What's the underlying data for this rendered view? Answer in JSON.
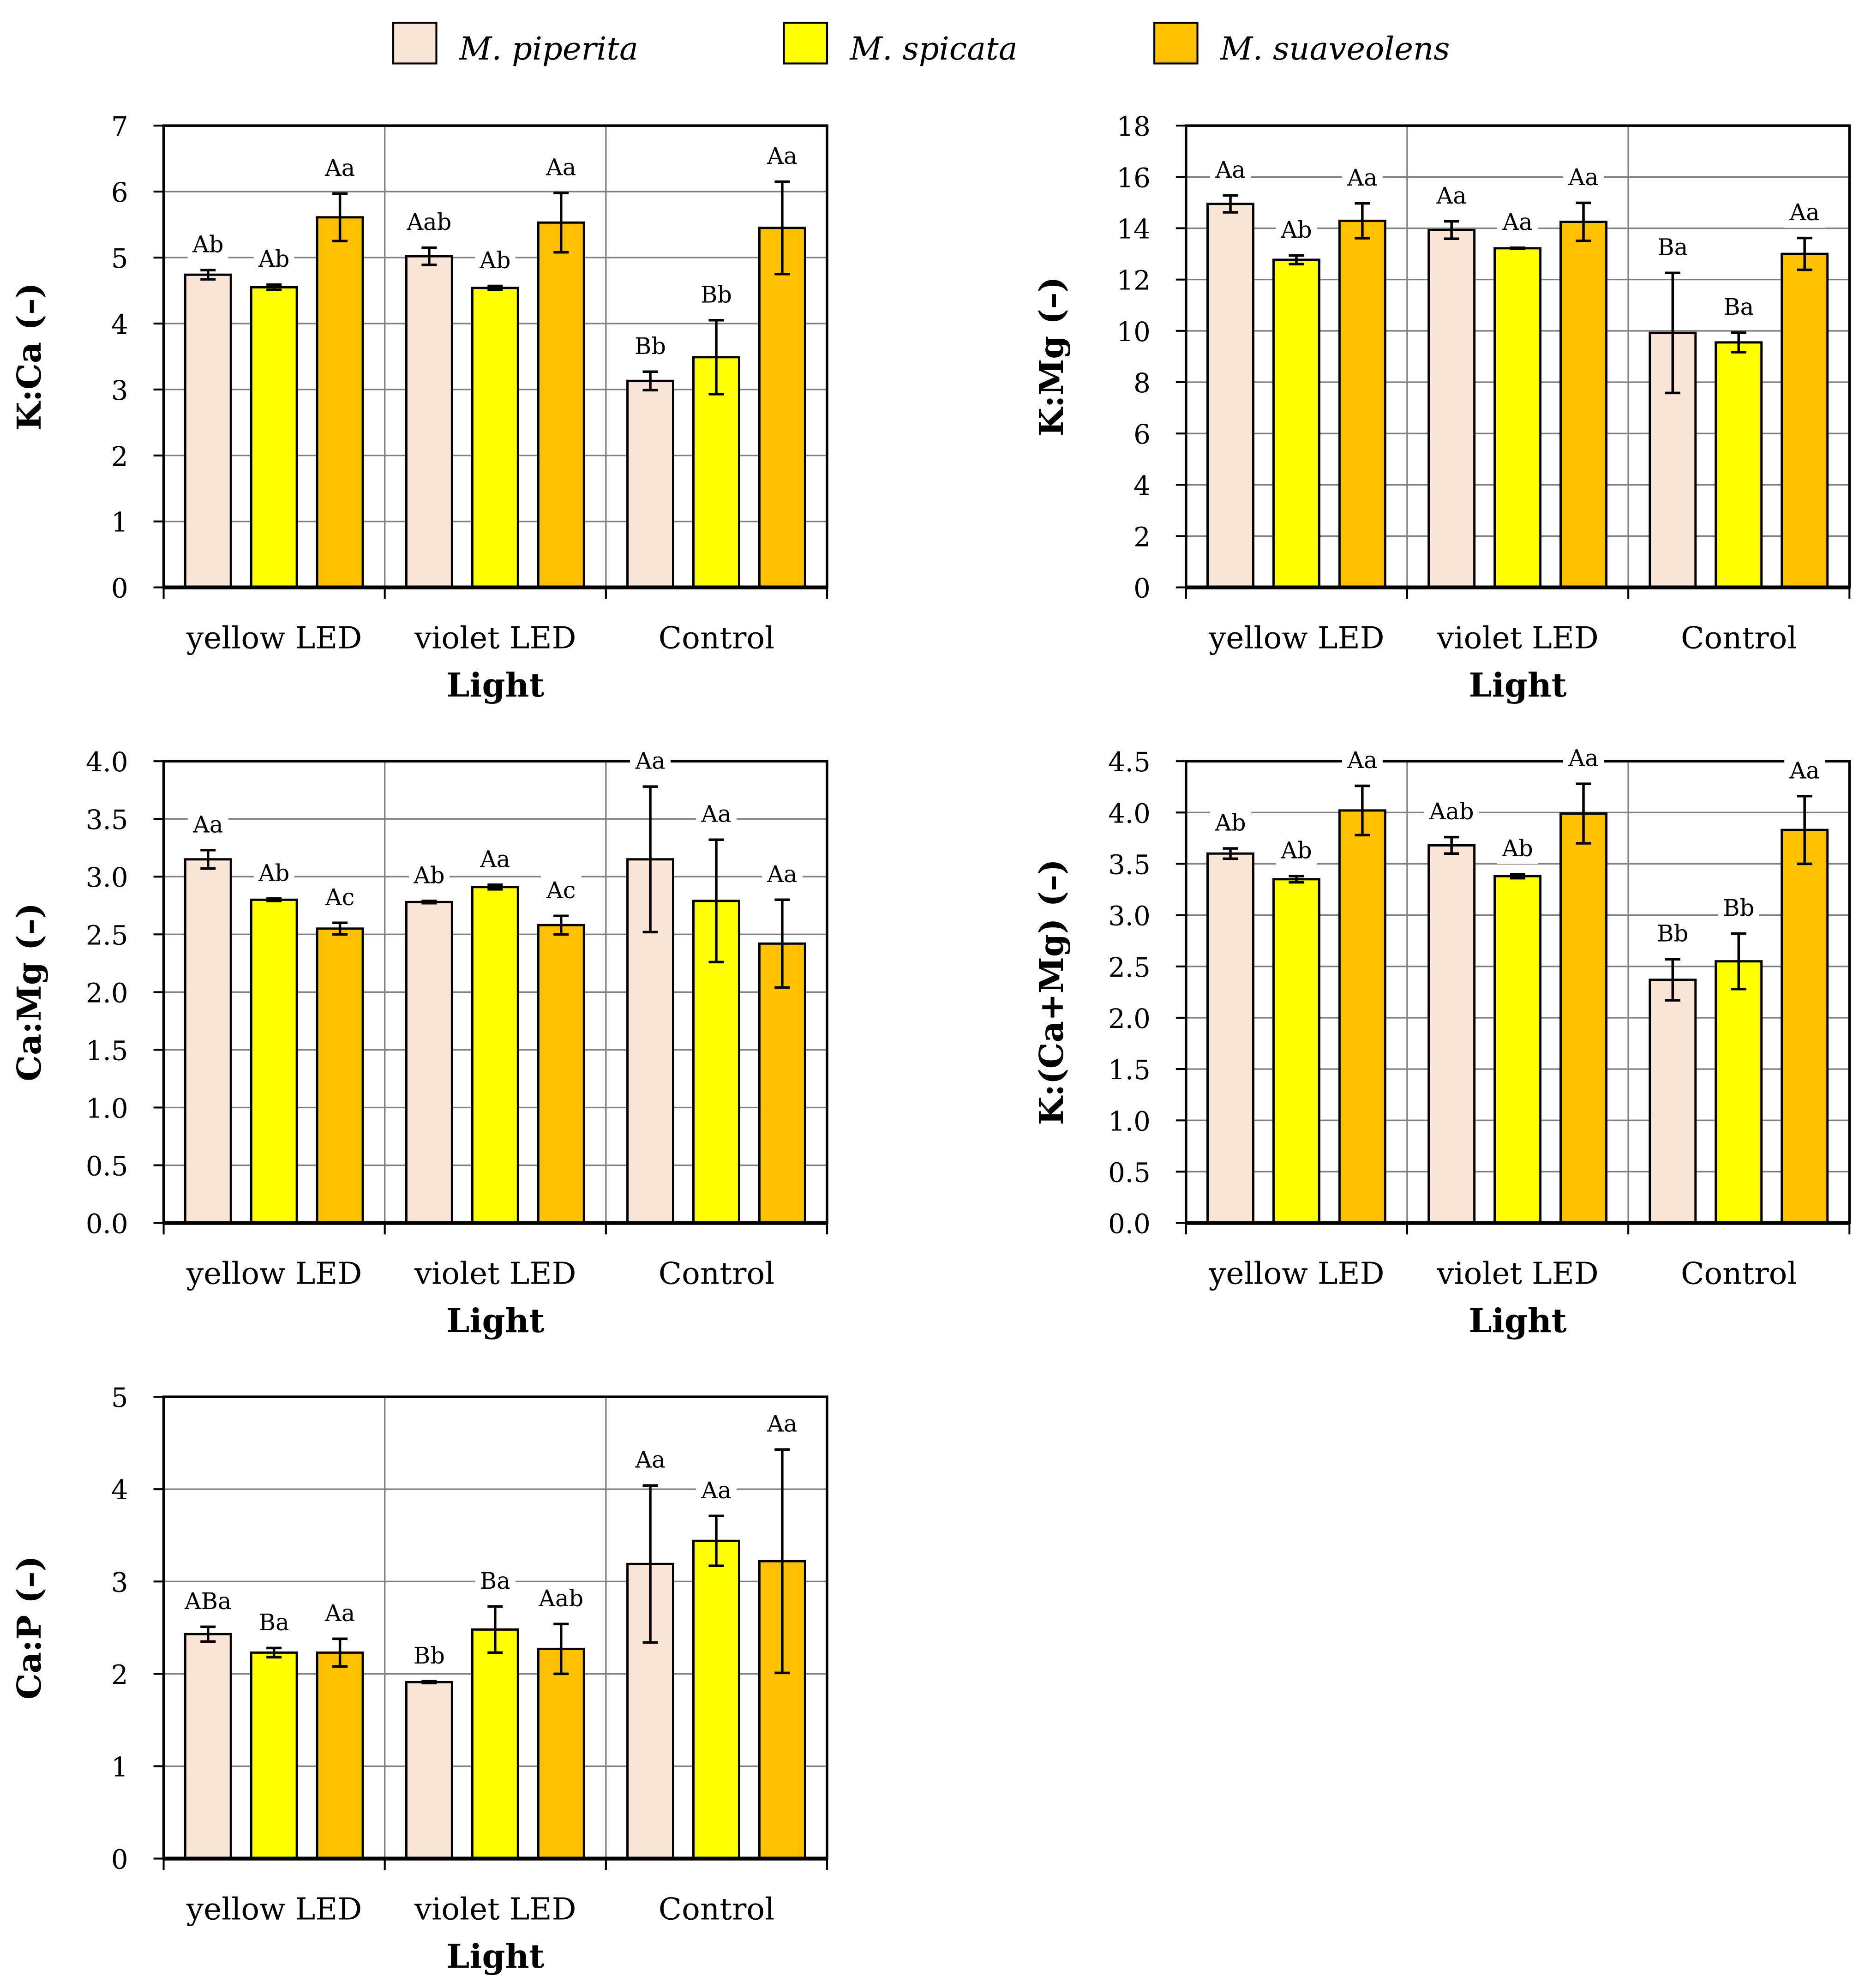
{
  "legend": [
    {
      "name": "M. piperita",
      "color": "#FAE4D6"
    },
    {
      "name": "M. spicata",
      "color": "#FFFF00"
    },
    {
      "name": "M. suaveolens",
      "color": "#FFC000"
    }
  ],
  "chart_data": [
    {
      "type": "bar",
      "title": "",
      "xlabel": "Light",
      "ylabel": "K:Ca (–)",
      "ylim": [
        0,
        7
      ],
      "yticks": [
        "0",
        "1",
        "2",
        "3",
        "4",
        "5",
        "6",
        "7"
      ],
      "grid": true,
      "categories": [
        "yellow LED",
        "violet LED",
        "Control"
      ],
      "series": [
        {
          "name": "M. piperita",
          "values": [
            4.74,
            5.02,
            3.13
          ],
          "errors": [
            0.07,
            0.13,
            0.14
          ],
          "letters": [
            "Ab",
            "Aab",
            "Bb"
          ]
        },
        {
          "name": "M. spicata",
          "values": [
            4.55,
            4.54,
            3.49
          ],
          "errors": [
            0.04,
            0.03,
            0.56
          ],
          "letters": [
            "Ab",
            "Ab",
            "Bb"
          ]
        },
        {
          "name": "M. suaveolens",
          "values": [
            5.61,
            5.53,
            5.45
          ],
          "errors": [
            0.36,
            0.45,
            0.7
          ],
          "letters": [
            "Aa",
            "Aa",
            "Aa"
          ]
        }
      ]
    },
    {
      "type": "bar",
      "title": "",
      "xlabel": "Light",
      "ylabel": "K:Mg (–)",
      "ylim": [
        0,
        18
      ],
      "yticks": [
        "0",
        "2",
        "4",
        "6",
        "8",
        "10",
        "12",
        "14",
        "16",
        "18"
      ],
      "grid": true,
      "categories": [
        "yellow LED",
        "violet LED",
        "Control"
      ],
      "series": [
        {
          "name": "M. piperita",
          "values": [
            14.95,
            13.93,
            9.92
          ],
          "errors": [
            0.33,
            0.34,
            2.34
          ],
          "letters": [
            "Aa",
            "Aa",
            "Ba"
          ]
        },
        {
          "name": "M. spicata",
          "values": [
            12.77,
            13.22,
            9.55
          ],
          "errors": [
            0.17,
            0.02,
            0.38
          ],
          "letters": [
            "Ab",
            "Aa",
            "Ba"
          ]
        },
        {
          "name": "M. suaveolens",
          "values": [
            14.29,
            14.25,
            13.0
          ],
          "errors": [
            0.68,
            0.74,
            0.62
          ],
          "letters": [
            "Aa",
            "Aa",
            "Aa"
          ]
        }
      ]
    },
    {
      "type": "bar",
      "title": "",
      "xlabel": "Light",
      "ylabel": "Ca:Mg (–)",
      "ylim": [
        0,
        4
      ],
      "yticks": [
        "0.0",
        "0.5",
        "1.0",
        "1.5",
        "2.0",
        "2.5",
        "3.0",
        "3.5",
        "4.0"
      ],
      "grid": true,
      "categories": [
        "yellow LED",
        "violet LED",
        "Control"
      ],
      "series": [
        {
          "name": "M. piperita",
          "values": [
            3.15,
            2.78,
            3.15
          ],
          "errors": [
            0.08,
            0.01,
            0.63
          ],
          "letters": [
            "Aa",
            "Ab",
            "Aa"
          ]
        },
        {
          "name": "M. spicata",
          "values": [
            2.8,
            2.91,
            2.79
          ],
          "errors": [
            0.01,
            0.02,
            0.53
          ],
          "letters": [
            "Ab",
            "Aa",
            "Aa"
          ]
        },
        {
          "name": "M. suaveolens",
          "values": [
            2.55,
            2.58,
            2.42
          ],
          "errors": [
            0.05,
            0.08,
            0.38
          ],
          "letters": [
            "Ac",
            "Ac",
            "Aa"
          ]
        }
      ]
    },
    {
      "type": "bar",
      "title": "",
      "xlabel": "Light",
      "ylabel": "K:(Ca+Mg) (–)",
      "ylim": [
        0,
        4.5
      ],
      "yticks": [
        "0.0",
        "0.5",
        "1.0",
        "1.5",
        "2.0",
        "2.5",
        "3.0",
        "3.5",
        "4.0",
        "4.5"
      ],
      "grid": true,
      "categories": [
        "yellow LED",
        "violet LED",
        "Control"
      ],
      "series": [
        {
          "name": "M. piperita",
          "values": [
            3.6,
            3.68,
            2.37
          ],
          "errors": [
            0.05,
            0.08,
            0.2
          ],
          "letters": [
            "Ab",
            "Aab",
            "Bb"
          ]
        },
        {
          "name": "M. spicata",
          "values": [
            3.35,
            3.38,
            2.55
          ],
          "errors": [
            0.03,
            0.02,
            0.27
          ],
          "letters": [
            "Ab",
            "Ab",
            "Bb"
          ]
        },
        {
          "name": "M. suaveolens",
          "values": [
            4.02,
            3.99,
            3.83
          ],
          "errors": [
            0.24,
            0.29,
            0.33
          ],
          "letters": [
            "Aa",
            "Aa",
            "Aa"
          ]
        }
      ]
    },
    {
      "type": "bar",
      "title": "",
      "xlabel": "Light",
      "ylabel": "Ca:P (–)",
      "ylim": [
        0,
        5
      ],
      "yticks": [
        "0",
        "1",
        "2",
        "3",
        "4",
        "5"
      ],
      "grid": true,
      "categories": [
        "yellow LED",
        "violet LED",
        "Control"
      ],
      "series": [
        {
          "name": "M. piperita",
          "values": [
            2.43,
            1.91,
            3.19
          ],
          "errors": [
            0.08,
            0.01,
            0.85
          ],
          "letters": [
            "ABa",
            "Bb",
            "Aa"
          ]
        },
        {
          "name": "M. spicata",
          "values": [
            2.23,
            2.48,
            3.44
          ],
          "errors": [
            0.05,
            0.25,
            0.27
          ],
          "letters": [
            "Ba",
            "Ba",
            "Aa"
          ]
        },
        {
          "name": "M. suaveolens",
          "values": [
            2.23,
            2.27,
            3.22
          ],
          "errors": [
            0.15,
            0.27,
            1.21
          ],
          "letters": [
            "Aa",
            "Aab",
            "Aa"
          ]
        }
      ]
    }
  ]
}
